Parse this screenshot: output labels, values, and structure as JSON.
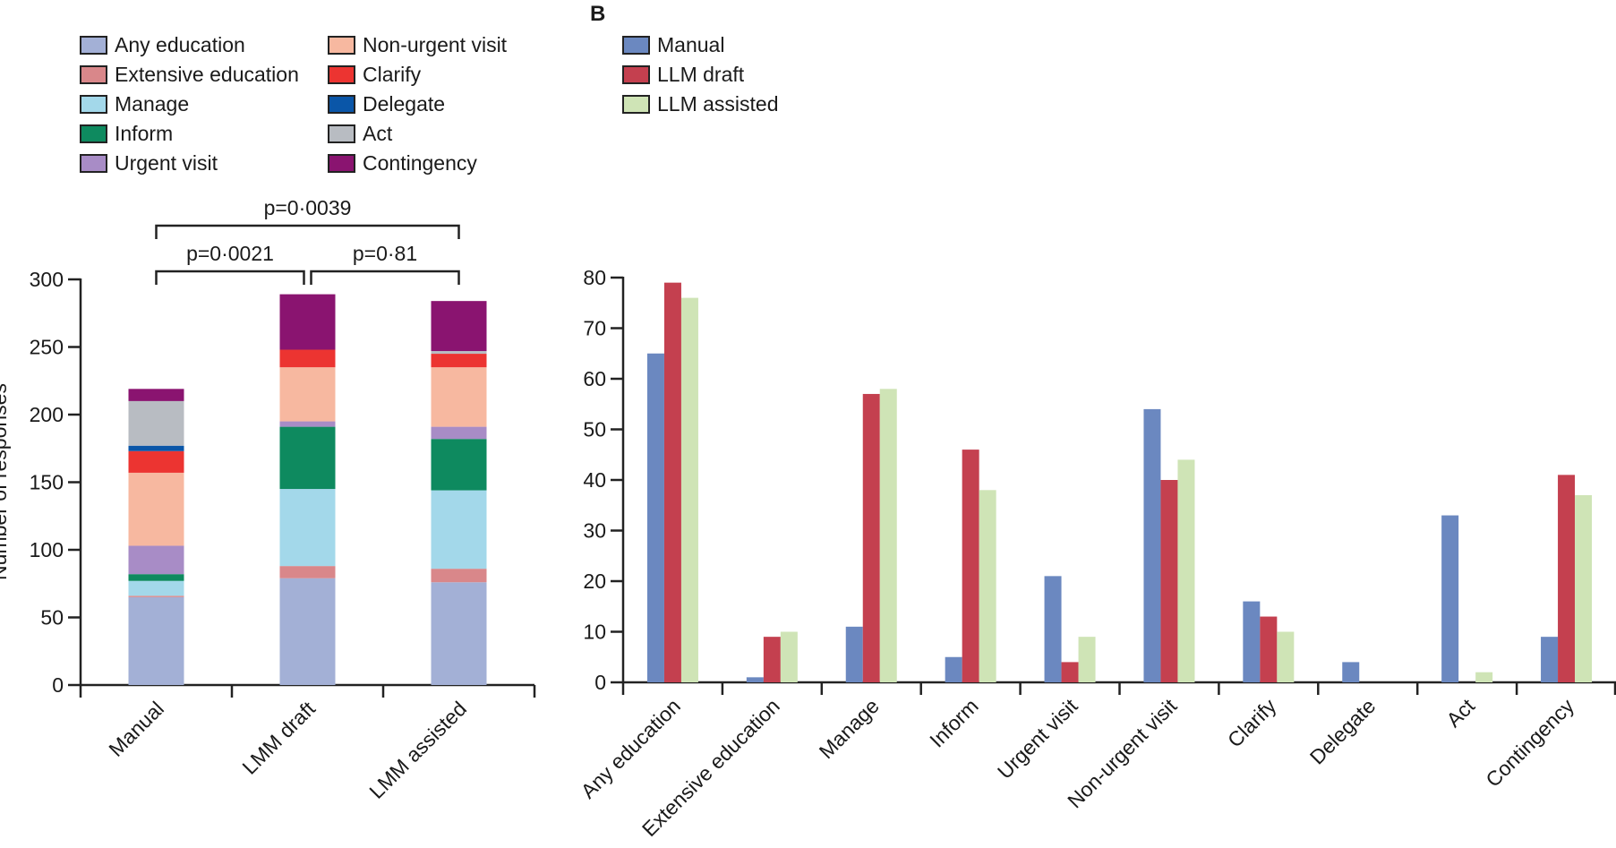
{
  "panel_labels": {
    "b": "B"
  },
  "legend_a": [
    {
      "label": "Any education",
      "color": "#a3b0d6"
    },
    {
      "label": "Extensive education",
      "color": "#d9878a"
    },
    {
      "label": "Manage",
      "color": "#a3d8ea"
    },
    {
      "label": "Inform",
      "color": "#0e8a5f"
    },
    {
      "label": "Urgent visit",
      "color": "#a88cc6"
    },
    {
      "label": "Non-urgent visit",
      "color": "#f7b8a0"
    },
    {
      "label": "Clarify",
      "color": "#ec3431"
    },
    {
      "label": "Delegate",
      "color": "#0a56a8"
    },
    {
      "label": "Act",
      "color": "#b8bcc2"
    },
    {
      "label": "Contingency",
      "color": "#8a1470"
    }
  ],
  "legend_b": [
    {
      "label": "Manual",
      "color": "#6b88c0"
    },
    {
      "label": "LLM draft",
      "color": "#c4404f"
    },
    {
      "label": "LLM assisted",
      "color": "#cfe4b6"
    }
  ],
  "chart_data": [
    {
      "panel": "A",
      "type": "bar",
      "stacked": true,
      "ylabel": "Number of responses",
      "ylim": [
        0,
        300
      ],
      "yticks": [
        "0",
        "50",
        "100",
        "150",
        "200",
        "250",
        "300"
      ],
      "categories": [
        "Manual",
        "LMM draft",
        "LMM assisted"
      ],
      "series": [
        {
          "name": "Any education",
          "values": [
            65,
            79,
            76
          ]
        },
        {
          "name": "Extensive education",
          "values": [
            1,
            9,
            10
          ]
        },
        {
          "name": "Manage",
          "values": [
            11,
            57,
            58
          ]
        },
        {
          "name": "Inform",
          "values": [
            5,
            46,
            38
          ]
        },
        {
          "name": "Urgent visit",
          "values": [
            21,
            4,
            9
          ]
        },
        {
          "name": "Non-urgent visit",
          "values": [
            54,
            40,
            44
          ]
        },
        {
          "name": "Clarify",
          "values": [
            16,
            13,
            10
          ]
        },
        {
          "name": "Delegate",
          "values": [
            4,
            0,
            0
          ]
        },
        {
          "name": "Act",
          "values": [
            33,
            0,
            2
          ]
        },
        {
          "name": "Contingency",
          "values": [
            9,
            41,
            37
          ]
        }
      ],
      "annotations": [
        {
          "text": "p=0·0039",
          "from": 0,
          "to": 2,
          "level": 2
        },
        {
          "text": "p=0·0021",
          "from": 0,
          "to": 1,
          "level": 1
        },
        {
          "text": "p=0·81",
          "from": 1,
          "to": 2,
          "level": 1
        }
      ]
    },
    {
      "panel": "B",
      "type": "bar",
      "stacked": false,
      "ylim": [
        0,
        80
      ],
      "yticks": [
        "0",
        "10",
        "20",
        "30",
        "40",
        "50",
        "60",
        "70",
        "80"
      ],
      "categories": [
        "Any education",
        "Extensive education",
        "Manage",
        "Inform",
        "Urgent visit",
        "Non-urgent visit",
        "Clarify",
        "Delegate",
        "Act",
        "Contingency"
      ],
      "series": [
        {
          "name": "Manual",
          "values": [
            65,
            1,
            11,
            5,
            21,
            54,
            16,
            4,
            33,
            9
          ]
        },
        {
          "name": "LLM draft",
          "values": [
            79,
            9,
            57,
            46,
            4,
            40,
            13,
            0,
            0,
            41
          ]
        },
        {
          "name": "LLM assisted",
          "values": [
            76,
            10,
            58,
            38,
            9,
            44,
            10,
            0,
            2,
            37
          ]
        }
      ]
    }
  ]
}
